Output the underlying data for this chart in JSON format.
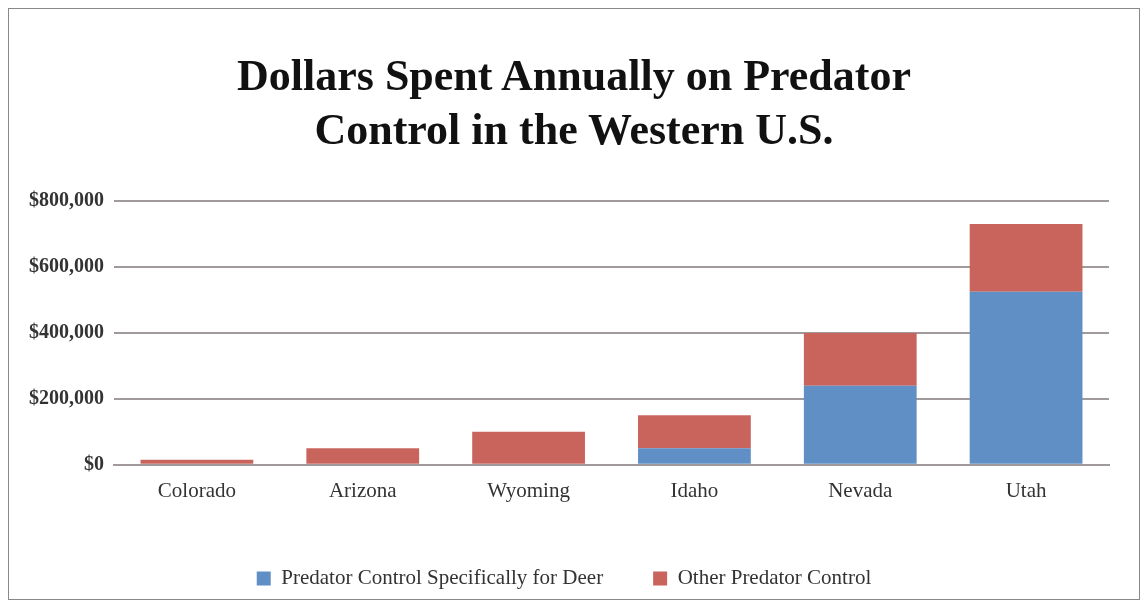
{
  "chart_data": {
    "type": "bar",
    "title": "Dollars Spent Annually on Predator Control in the Western U.S.",
    "categories": [
      "Colorado",
      "Arizona",
      "Wyoming",
      "Idaho",
      "Nevada",
      "Utah"
    ],
    "stacked": true,
    "series": [
      {
        "name": "Predator Control Specifically for Deer",
        "color": "#5f8fc4",
        "values": [
          0,
          0,
          0,
          50000,
          240000,
          525000
        ]
      },
      {
        "name": "Other Predator Control",
        "color": "#c9645c",
        "values": [
          15000,
          50000,
          100000,
          100000,
          160000,
          205000
        ]
      }
    ],
    "ylim": [
      0,
      800000
    ],
    "yticks": [
      {
        "value": 0,
        "label": "$0"
      },
      {
        "value": 200000,
        "label": "$200,000"
      },
      {
        "value": 400000,
        "label": "$400,000"
      },
      {
        "value": 600000,
        "label": "$600,000"
      },
      {
        "value": 800000,
        "label": "$800,000"
      }
    ],
    "grid": "y",
    "legend": "bottom"
  }
}
